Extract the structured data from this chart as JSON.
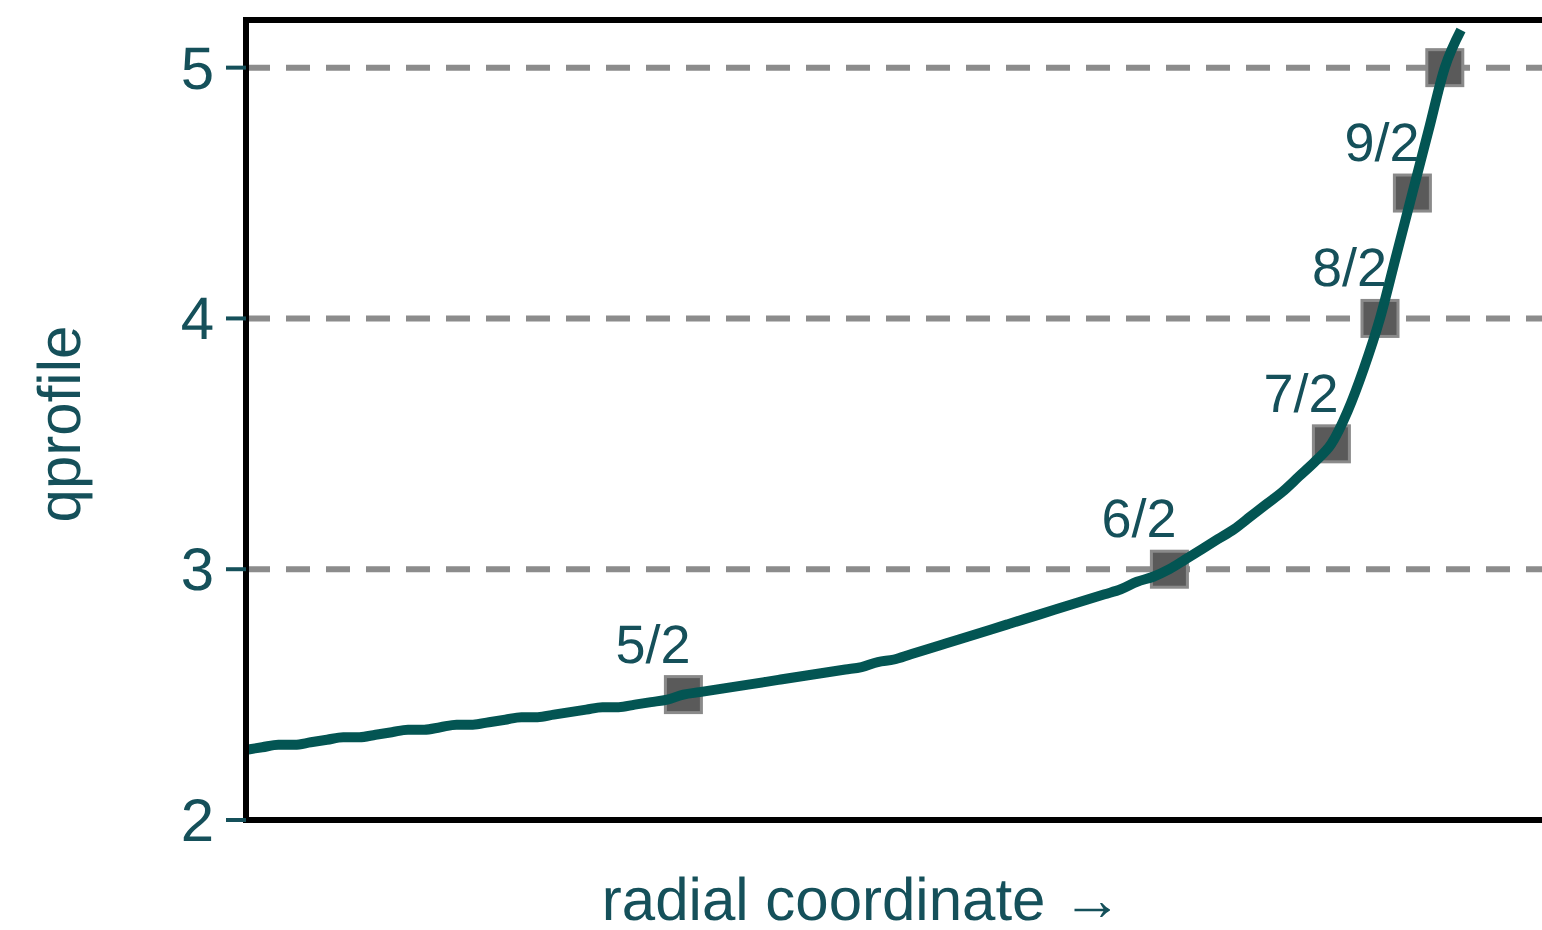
{
  "chart_data": {
    "type": "line",
    "xlabel": "radial coordinate →",
    "ylabel": "qprofile",
    "categories": [
      null,
      null,
      null,
      null,
      null,
      null,
      null,
      null,
      null,
      null,
      null,
      null,
      null,
      null,
      null,
      null,
      null,
      null,
      null,
      null,
      null,
      null,
      null,
      null,
      null,
      null,
      null,
      null,
      null,
      null,
      null,
      null,
      null,
      null,
      null,
      null,
      null,
      null,
      null,
      null,
      null,
      null,
      null,
      null,
      null,
      null,
      null,
      null,
      null,
      null,
      null,
      null,
      null,
      null,
      null,
      null,
      null,
      null,
      null,
      null,
      null,
      null,
      null,
      null,
      null,
      null,
      null,
      null,
      null,
      null,
      null,
      null,
      null,
      null,
      null,
      null,
      null,
      null,
      null,
      null,
      null
    ],
    "ylim": [
      2,
      5.19
    ],
    "yticks": [
      2,
      3,
      4,
      5
    ],
    "tick_labels": "y",
    "ref_lines": [
      {
        "axis": "y",
        "value": 3,
        "color": "#8c8c8c",
        "line_style": "dashed"
      },
      {
        "axis": "y",
        "value": 4,
        "color": "#8c8c8c",
        "line_style": "dashed"
      },
      {
        "axis": "y",
        "value": 5,
        "color": "#8c8c8c",
        "line_style": "dashed"
      }
    ],
    "series": [
      {
        "color": "#035553",
        "line_style": "solid",
        "marker": "none",
        "values": [
          2.28,
          2.29,
          2.3,
          2.3,
          2.31,
          2.32,
          2.33,
          2.33,
          2.34,
          2.35,
          2.36,
          2.36,
          2.37,
          2.38,
          2.38,
          2.39,
          2.4,
          2.41,
          2.41,
          2.42,
          2.43,
          2.44,
          2.45,
          2.45,
          2.46,
          2.47,
          2.48,
          2.5,
          2.51,
          2.52,
          2.53,
          2.54,
          2.55,
          2.56,
          2.57,
          2.58,
          2.59,
          2.6,
          2.61,
          2.63,
          2.64,
          2.66,
          2.68,
          2.7,
          2.72,
          2.74,
          2.76,
          2.78,
          2.8,
          2.82,
          2.84,
          2.86,
          2.88,
          2.9,
          2.92,
          2.95,
          2.97,
          3.0,
          3.04,
          3.08,
          3.12,
          3.16,
          3.21,
          3.26,
          3.31,
          3.37,
          3.43,
          3.5,
          3.63,
          3.8,
          4.0,
          4.25,
          4.5,
          4.75,
          5.0,
          5.15,
          null,
          null,
          null,
          null,
          null
        ]
      },
      {
        "type": "scatter",
        "color": "#5a5a5a",
        "marker": "square",
        "values": [
          null,
          null,
          null,
          null,
          null,
          null,
          null,
          null,
          null,
          null,
          null,
          null,
          null,
          null,
          null,
          null,
          null,
          null,
          null,
          null,
          null,
          null,
          null,
          null,
          null,
          null,
          null,
          2.5,
          null,
          null,
          null,
          null,
          null,
          null,
          null,
          null,
          null,
          null,
          null,
          null,
          null,
          null,
          null,
          null,
          null,
          null,
          null,
          null,
          null,
          null,
          null,
          null,
          null,
          null,
          null,
          null,
          null,
          3.0,
          null,
          null,
          null,
          null,
          null,
          null,
          null,
          null,
          null,
          3.5,
          null,
          null,
          4.0,
          null,
          4.5,
          null,
          5.0,
          null,
          null,
          null,
          null,
          null,
          null
        ],
        "value_labels": [
          null,
          null,
          null,
          null,
          null,
          null,
          null,
          null,
          null,
          null,
          null,
          null,
          null,
          null,
          null,
          null,
          null,
          null,
          null,
          null,
          null,
          null,
          null,
          null,
          null,
          null,
          null,
          "5/2",
          null,
          null,
          null,
          null,
          null,
          null,
          null,
          null,
          null,
          null,
          null,
          null,
          null,
          null,
          null,
          null,
          null,
          null,
          null,
          null,
          null,
          null,
          null,
          null,
          null,
          null,
          null,
          null,
          null,
          "6/2",
          null,
          null,
          null,
          null,
          null,
          null,
          null,
          null,
          null,
          "7/2",
          null,
          null,
          "8/2",
          null,
          "9/2",
          null,
          null,
          null,
          null,
          null,
          null,
          null,
          null
        ]
      }
    ]
  }
}
